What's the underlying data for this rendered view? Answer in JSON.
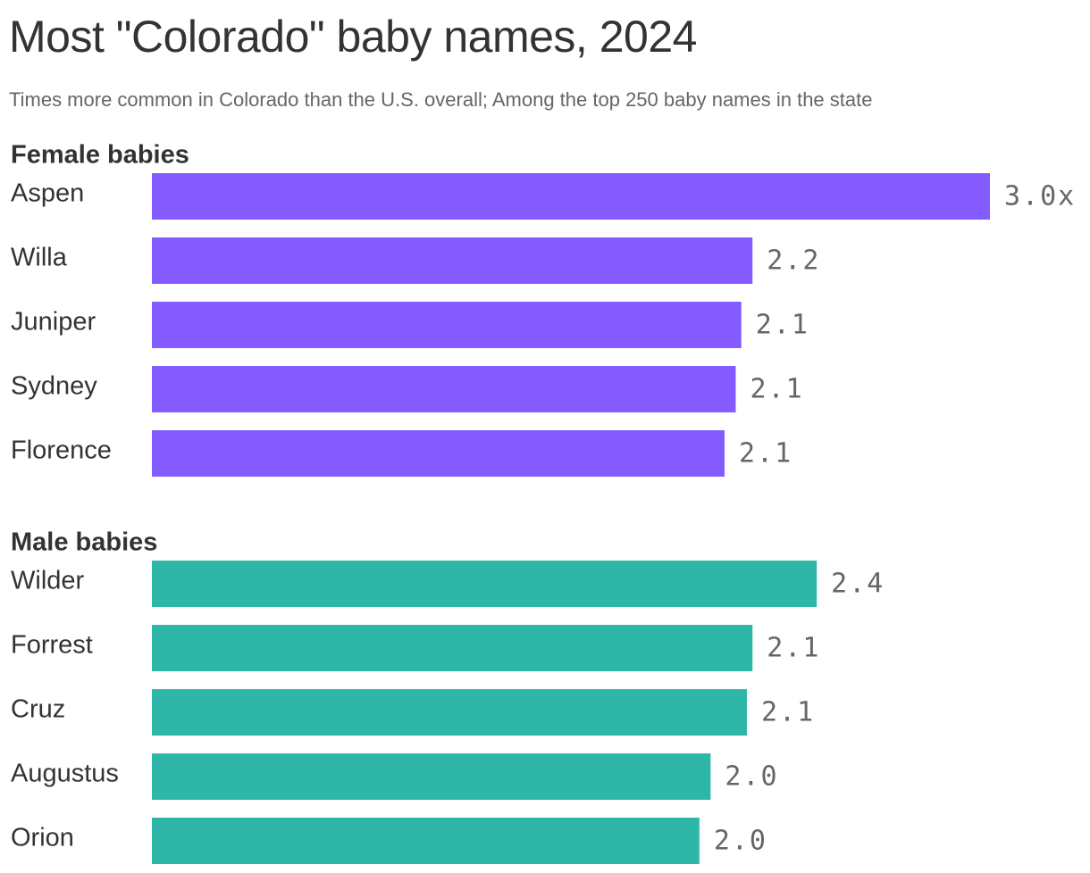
{
  "title": "Most \"Colorado\" baby names, 2024",
  "subtitle": "Times more common in Colorado than the U.S. overall; Among the top 250 baby names in the state",
  "chart_data": {
    "type": "bar",
    "orientation": "horizontal",
    "xlim": [
      0,
      3.0
    ],
    "grid": false,
    "groups": [
      {
        "name": "Female babies",
        "color": "#845bff",
        "categories": [
          "Aspen",
          "Willa",
          "Juniper",
          "Sydney",
          "Florence"
        ],
        "values": [
          3.0,
          2.15,
          2.11,
          2.09,
          2.05
        ],
        "value_labels": [
          "3.0x",
          "2.2",
          "2.1",
          "2.1",
          "2.1"
        ]
      },
      {
        "name": "Male babies",
        "color": "#2eb7a8",
        "categories": [
          "Wilder",
          "Forrest",
          "Cruz",
          "Augustus",
          "Orion"
        ],
        "values": [
          2.38,
          2.15,
          2.13,
          2.0,
          1.96
        ],
        "value_labels": [
          "2.4",
          "2.1",
          "2.1",
          "2.0",
          "2.0"
        ]
      }
    ]
  }
}
